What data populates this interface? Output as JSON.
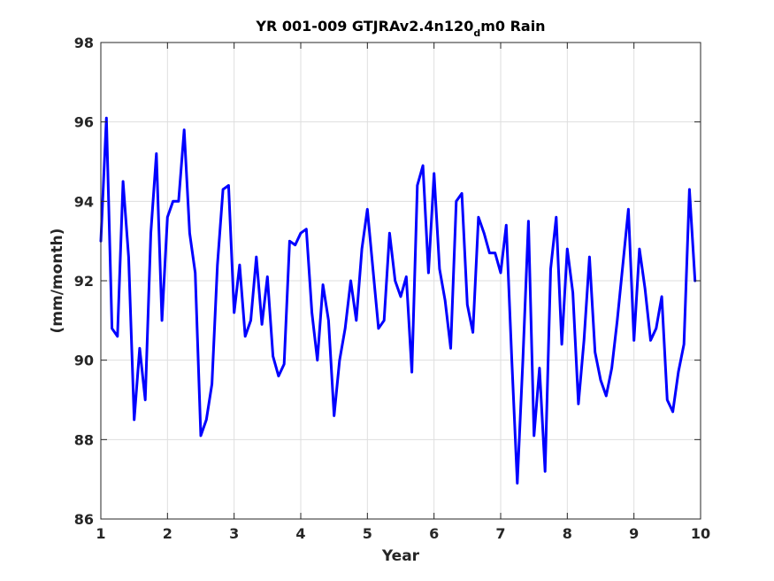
{
  "chart_data": {
    "type": "line",
    "title": "YR 001-009 GTJRAv2.4n120",
    "title_subscript": "d",
    "title_suffix": "m0 Rain",
    "xlabel": "Year",
    "ylabel": "(mm/month)",
    "xlim": [
      1,
      10
    ],
    "ylim": [
      86,
      98
    ],
    "xticks": [
      "1",
      "2",
      "3",
      "4",
      "5",
      "6",
      "7",
      "8",
      "9",
      "10"
    ],
    "yticks": [
      "86",
      "88",
      "90",
      "92",
      "94",
      "96",
      "98"
    ],
    "grid": true,
    "series": [
      {
        "color": "#0000ff",
        "x": [
          1.0,
          1.083,
          1.167,
          1.25,
          1.333,
          1.417,
          1.5,
          1.583,
          1.667,
          1.75,
          1.833,
          1.917,
          2.0,
          2.083,
          2.167,
          2.25,
          2.333,
          2.417,
          2.5,
          2.583,
          2.667,
          2.75,
          2.833,
          2.917,
          3.0,
          3.083,
          3.167,
          3.25,
          3.333,
          3.417,
          3.5,
          3.583,
          3.667,
          3.75,
          3.833,
          3.917,
          4.0,
          4.083,
          4.167,
          4.25,
          4.333,
          4.417,
          4.5,
          4.583,
          4.667,
          4.75,
          4.833,
          4.917,
          5.0,
          5.083,
          5.167,
          5.25,
          5.333,
          5.417,
          5.5,
          5.583,
          5.667,
          5.75,
          5.833,
          5.917,
          6.0,
          6.083,
          6.167,
          6.25,
          6.333,
          6.417,
          6.5,
          6.583,
          6.667,
          6.75,
          6.833,
          6.917,
          7.0,
          7.083,
          7.167,
          7.25,
          7.333,
          7.417,
          7.5,
          7.583,
          7.667,
          7.75,
          7.833,
          7.917,
          8.0,
          8.083,
          8.167,
          8.25,
          8.333,
          8.417,
          8.5,
          8.583,
          8.667,
          8.75,
          8.833,
          8.917,
          9.0,
          9.083,
          9.167,
          9.25,
          9.333,
          9.417,
          9.5,
          9.583,
          9.667,
          9.75,
          9.833,
          9.917
        ],
        "values": [
          93.0,
          96.1,
          90.8,
          90.6,
          94.5,
          92.6,
          88.5,
          90.3,
          89.0,
          93.2,
          95.2,
          91.0,
          93.6,
          94.0,
          94.0,
          95.8,
          93.2,
          92.2,
          88.1,
          88.5,
          89.4,
          92.4,
          94.3,
          94.4,
          91.2,
          92.4,
          90.6,
          91.0,
          92.6,
          90.9,
          92.1,
          90.1,
          89.6,
          89.9,
          93.0,
          92.9,
          93.2,
          93.3,
          91.2,
          90.0,
          91.9,
          91.0,
          88.6,
          90.0,
          90.8,
          92.0,
          91.0,
          92.8,
          93.8,
          92.3,
          90.8,
          91.0,
          93.2,
          92.0,
          91.6,
          92.1,
          89.7,
          94.4,
          94.9,
          92.2,
          94.7,
          92.3,
          91.5,
          90.3,
          94.0,
          94.2,
          91.4,
          90.7,
          93.6,
          93.2,
          92.7,
          92.7,
          92.2,
          93.4,
          90.0,
          86.9,
          90.0,
          93.5,
          88.1,
          89.8,
          87.2,
          92.3,
          93.6,
          90.4,
          92.8,
          91.7,
          88.9,
          90.5,
          92.6,
          90.2,
          89.5,
          89.1,
          89.8,
          91.0,
          92.4,
          93.8,
          90.5,
          92.8,
          91.8,
          90.5,
          90.8,
          91.6,
          89.0,
          88.7,
          89.7,
          90.4,
          94.3,
          92.0
        ]
      }
    ]
  }
}
